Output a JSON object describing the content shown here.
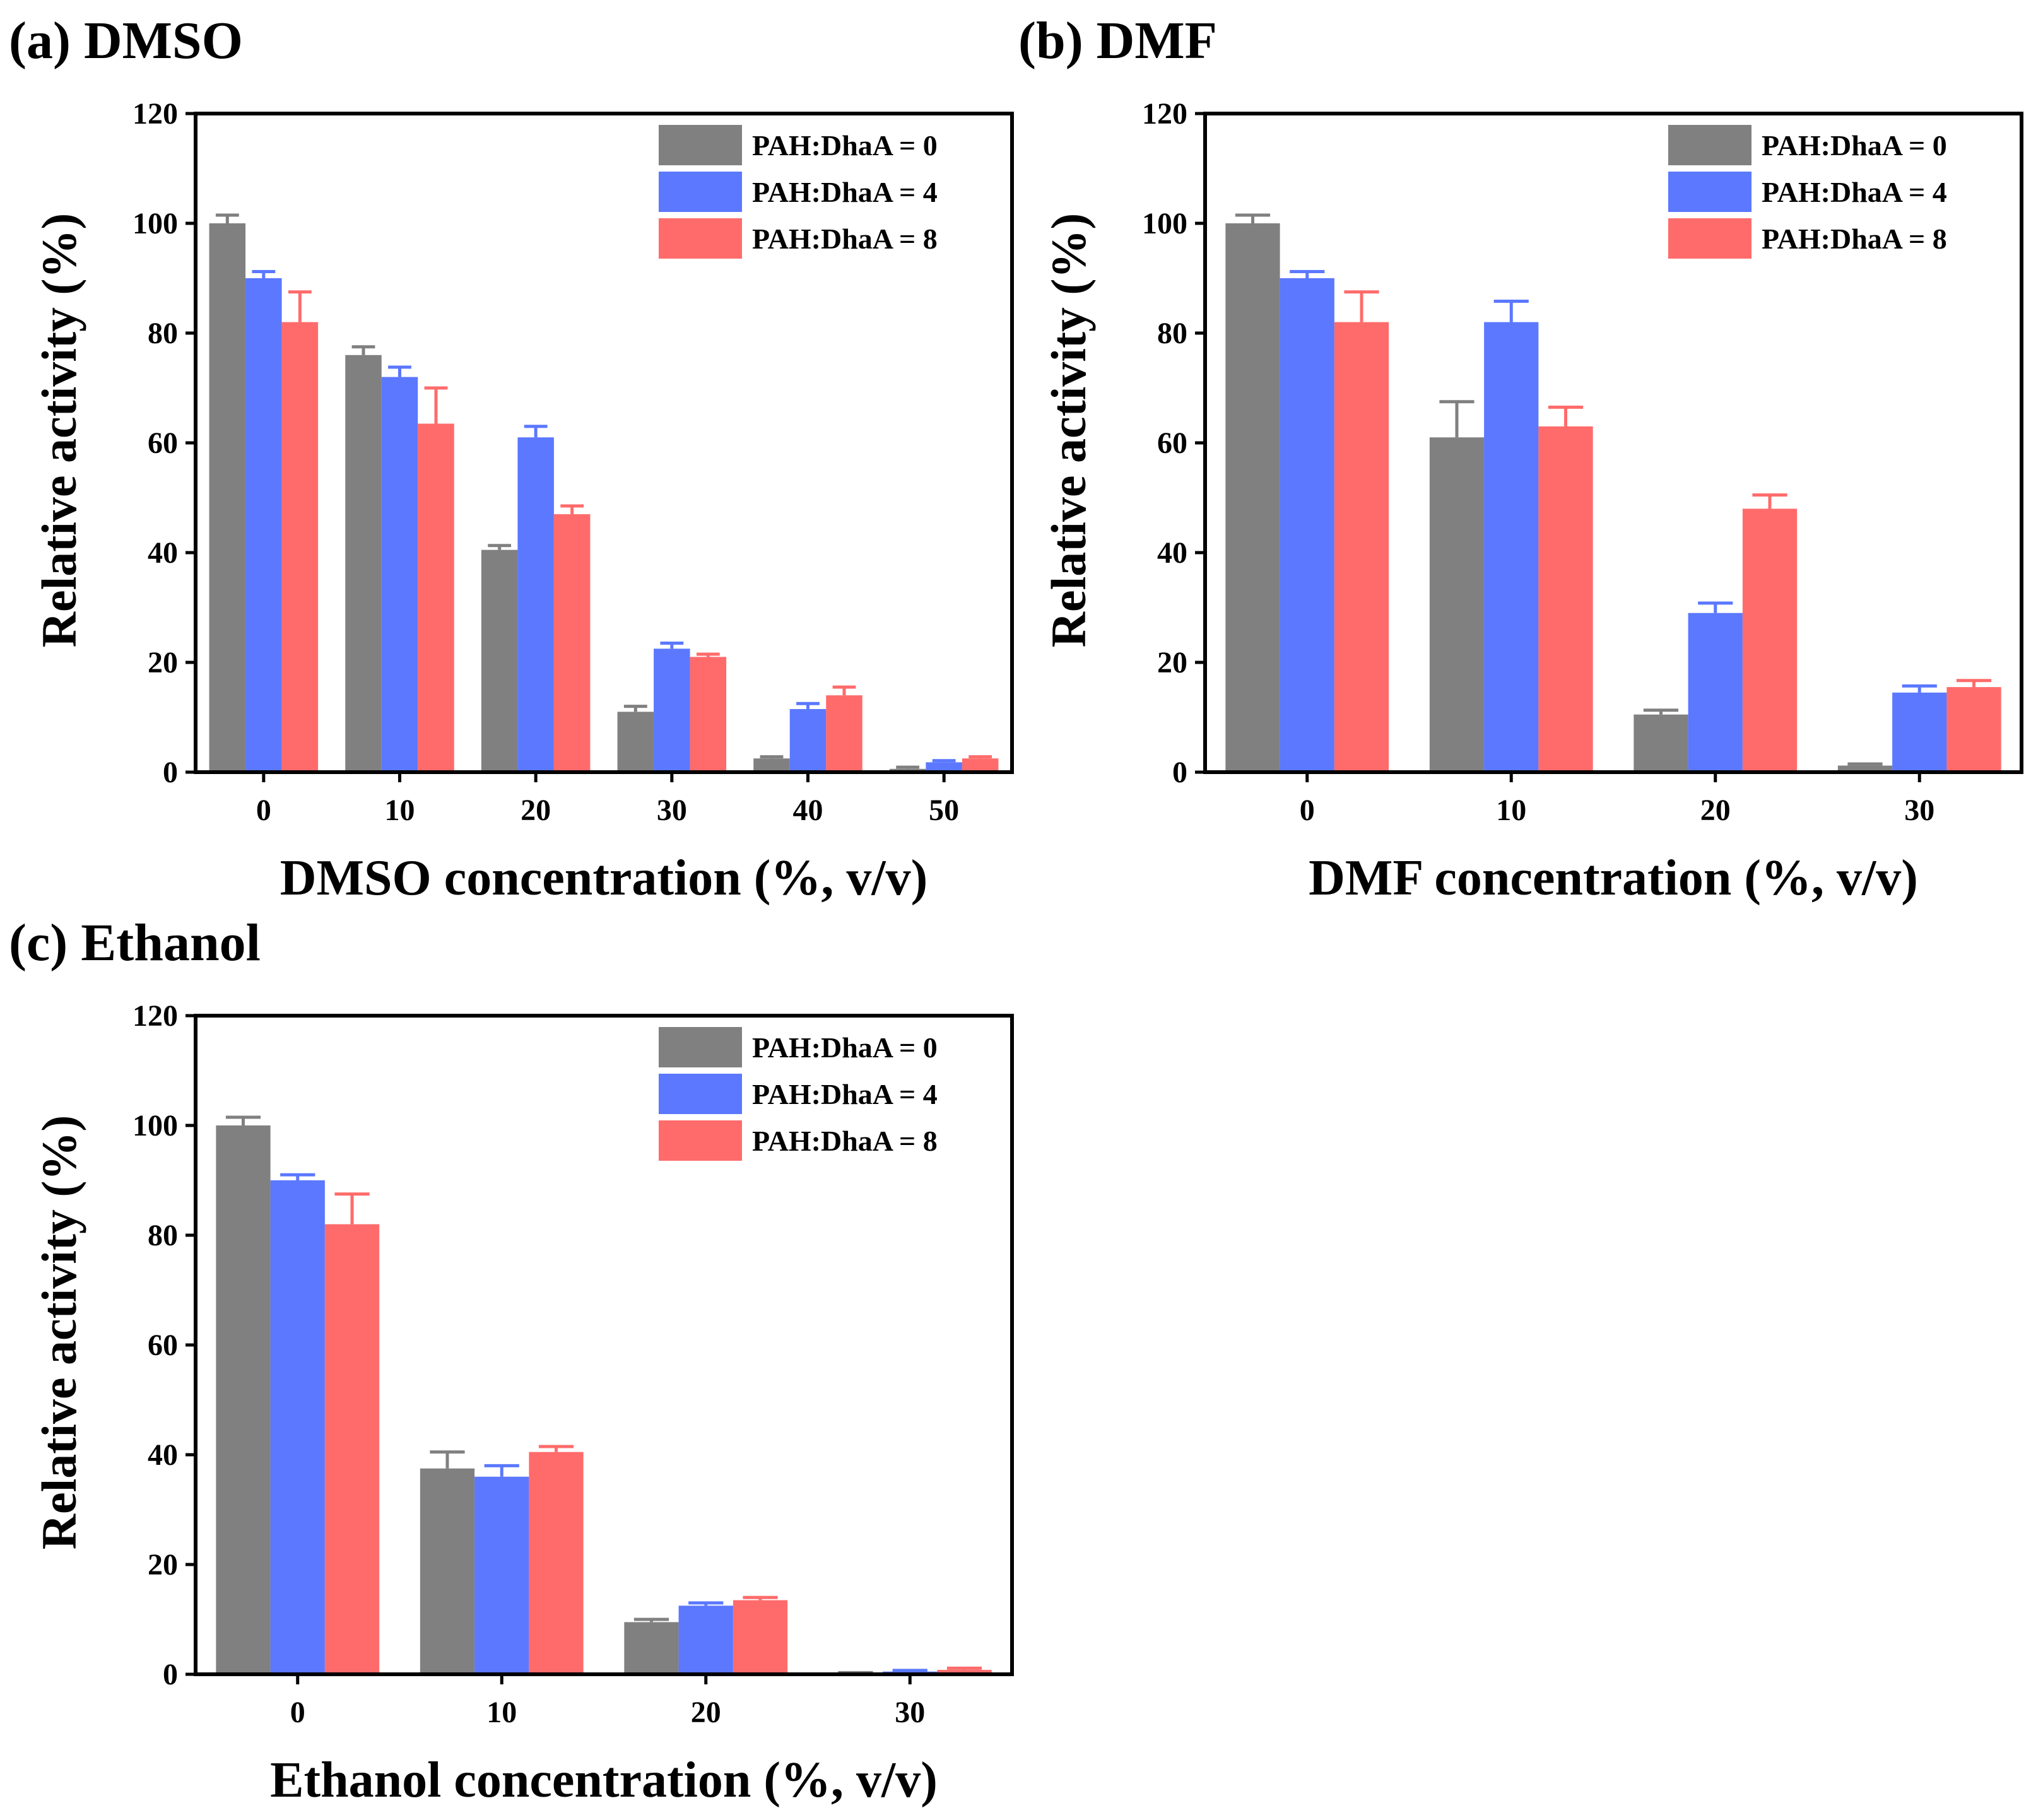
{
  "colors": {
    "series": [
      "#808080",
      "#5b78ff",
      "#ff6b6b"
    ],
    "axis": "#000000",
    "background": "#ffffff"
  },
  "chart_data": [
    {
      "id": "a",
      "type": "bar",
      "panel_label": "(a) DMSO",
      "xlabel": "DMSO concentration (%, v/v)",
      "ylabel": "Relative activity (%)",
      "ylim": [
        0,
        120
      ],
      "yticks": [
        0,
        20,
        40,
        60,
        80,
        100,
        120
      ],
      "categories": [
        "0",
        "10",
        "20",
        "30",
        "40",
        "50"
      ],
      "legend_position": "top-right",
      "series": [
        {
          "name": "PAH:DhaA = 0",
          "values": [
            100,
            76,
            40.5,
            11,
            2.5,
            0.6
          ],
          "errors": [
            1.5,
            1.5,
            0.8,
            1.0,
            0.3,
            0.3
          ]
        },
        {
          "name": "PAH:DhaA = 4",
          "values": [
            90,
            72,
            61,
            22.5,
            11.5,
            1.8
          ],
          "errors": [
            1.2,
            1.8,
            2.0,
            1.0,
            1.0,
            0.3
          ]
        },
        {
          "name": "PAH:DhaA = 8",
          "values": [
            82,
            63.5,
            47,
            21,
            14,
            2.5
          ],
          "errors": [
            5.5,
            6.5,
            1.5,
            0.5,
            1.5,
            0.3
          ]
        }
      ]
    },
    {
      "id": "b",
      "type": "bar",
      "panel_label": "(b) DMF",
      "xlabel": "DMF concentration (%, v/v)",
      "ylabel": "Relative activity (%)",
      "ylim": [
        0,
        120
      ],
      "yticks": [
        0,
        20,
        40,
        60,
        80,
        100,
        120
      ],
      "categories": [
        "0",
        "10",
        "20",
        "30"
      ],
      "legend_position": "top-right",
      "series": [
        {
          "name": "PAH:DhaA = 0",
          "values": [
            100,
            61,
            10.5,
            1.2
          ],
          "errors": [
            1.5,
            6.5,
            0.8,
            0.3
          ]
        },
        {
          "name": "PAH:DhaA = 4",
          "values": [
            90,
            82,
            29,
            14.5
          ],
          "errors": [
            1.2,
            3.8,
            1.8,
            1.2
          ]
        },
        {
          "name": "PAH:DhaA = 8",
          "values": [
            82,
            63,
            48,
            15.5
          ],
          "errors": [
            5.5,
            3.5,
            2.5,
            1.2
          ]
        }
      ]
    },
    {
      "id": "c",
      "type": "bar",
      "panel_label": "(c) Ethanol",
      "xlabel": "Ethanol concentration (%, v/v)",
      "ylabel": "Relative activity (%)",
      "ylim": [
        0,
        120
      ],
      "yticks": [
        0,
        20,
        40,
        60,
        80,
        100,
        120
      ],
      "categories": [
        "0",
        "10",
        "20",
        "30"
      ],
      "legend_position": "top-right",
      "series": [
        {
          "name": "PAH:DhaA = 0",
          "values": [
            100,
            37.5,
            9.5,
            0.2
          ],
          "errors": [
            1.5,
            3.0,
            0.5,
            0.1
          ]
        },
        {
          "name": "PAH:DhaA = 4",
          "values": [
            90,
            36,
            12.5,
            0.5
          ],
          "errors": [
            1.0,
            2.0,
            0.5,
            0.2
          ]
        },
        {
          "name": "PAH:DhaA = 8",
          "values": [
            82,
            40.5,
            13.5,
            0.8
          ],
          "errors": [
            5.5,
            1.0,
            0.5,
            0.3
          ]
        }
      ]
    }
  ]
}
